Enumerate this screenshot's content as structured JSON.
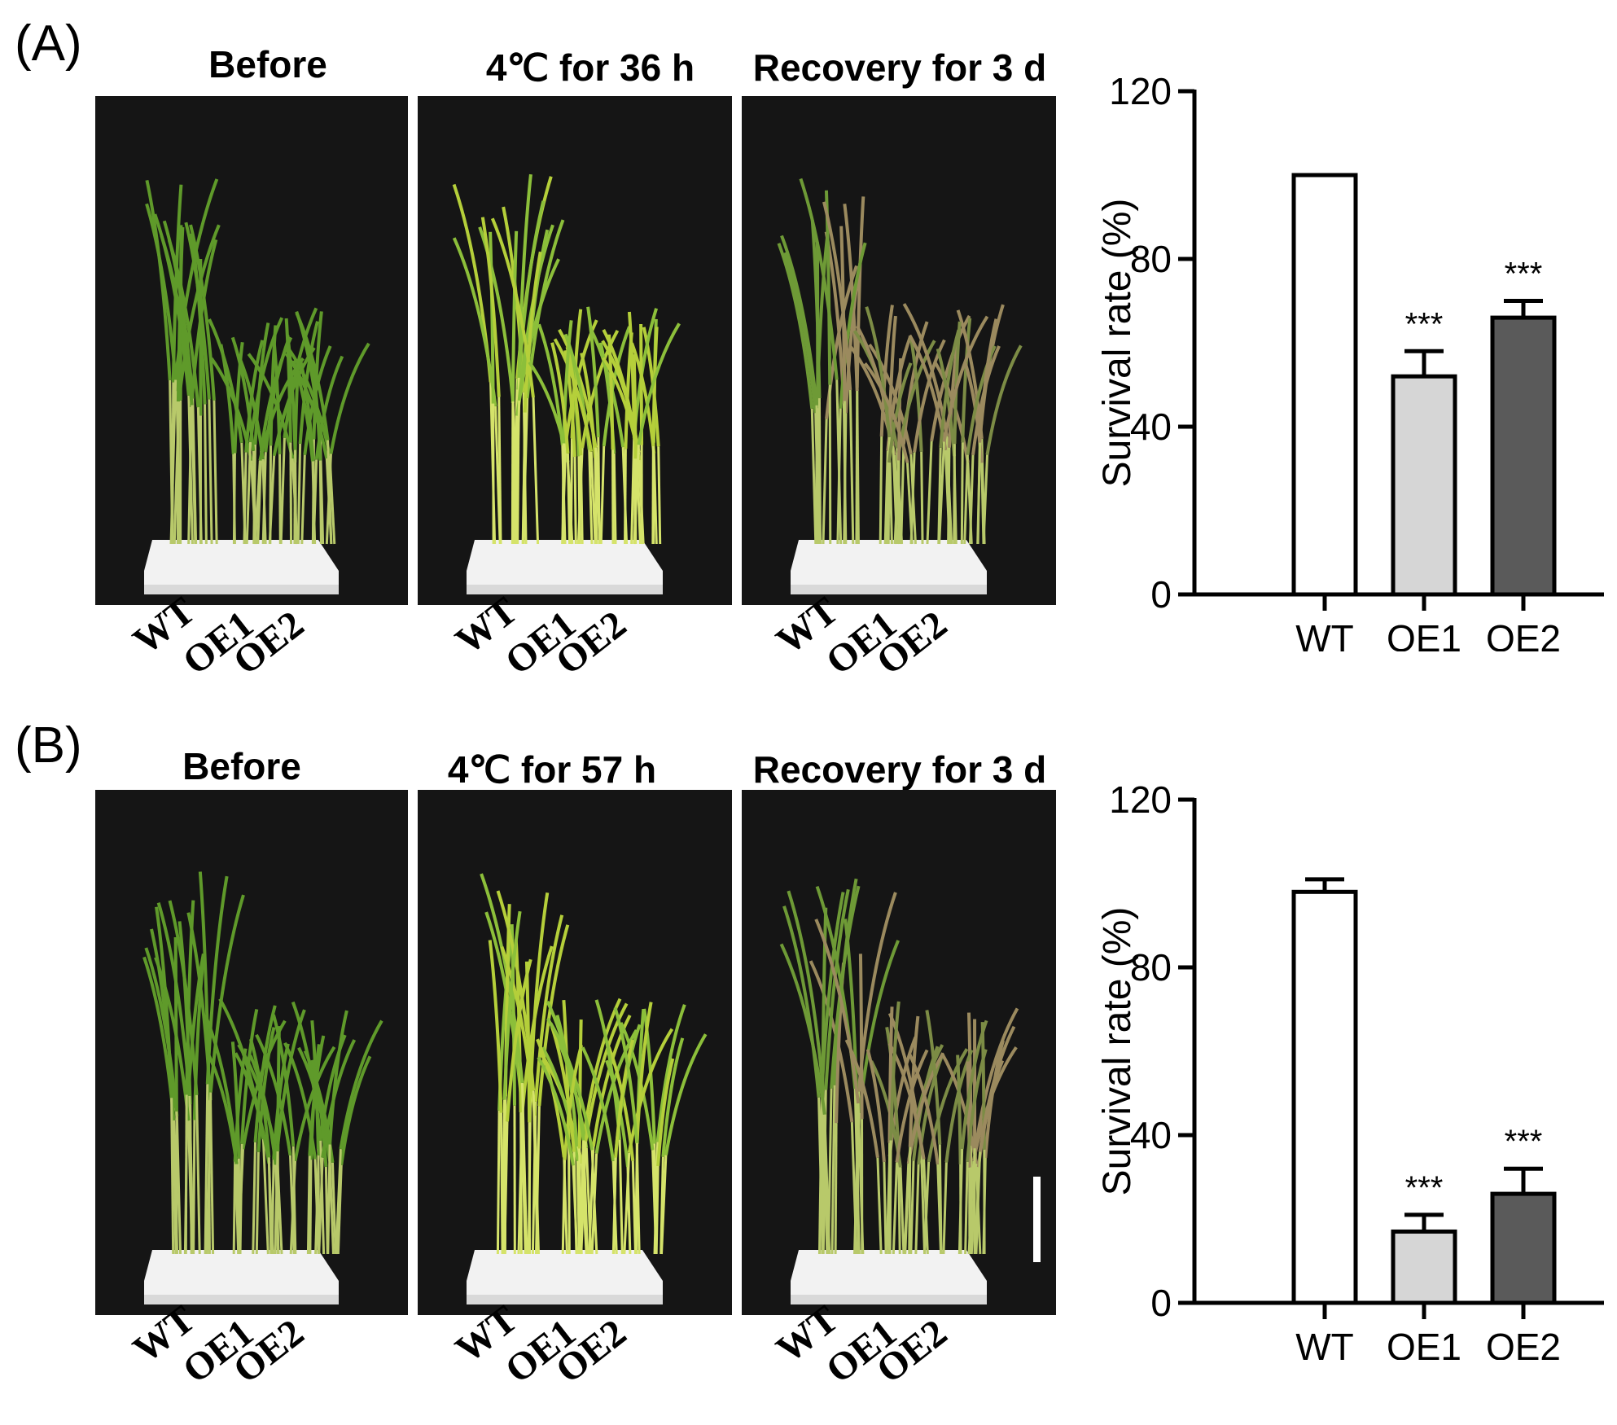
{
  "panels": [
    {
      "label": "(A)",
      "photos": [
        {
          "title": "Before",
          "condition": "before"
        },
        {
          "title": "4℃  for 36 h",
          "condition": "cold"
        },
        {
          "title": "Recovery for 3 d",
          "condition": "recovery"
        }
      ],
      "genotypes": [
        "WT",
        "OE1",
        "OE2"
      ],
      "scale_bar": false
    },
    {
      "label": "(B)",
      "photos": [
        {
          "title": "Before",
          "condition": "before"
        },
        {
          "title": "4℃  for 57 h",
          "condition": "cold"
        },
        {
          "title": "Recovery for 3 d",
          "condition": "recovery"
        }
      ],
      "genotypes": [
        "WT",
        "OE1",
        "OE2"
      ],
      "scale_bar": true
    }
  ],
  "colors": {
    "photo_background": "#151515",
    "leaf_green": "#5f9a2a",
    "leaf_yellow": "#b5cf3a",
    "leaf_brown": "#9b8a5e",
    "tray": "#f2f2f2",
    "bar_wt": "#ffffff",
    "bar_oe1": "#d6d6d6",
    "bar_oe2": "#5a5a5a"
  },
  "chart_data": [
    {
      "type": "bar",
      "panel": "A",
      "categories": [
        "WT",
        "OE1",
        "OE2"
      ],
      "values": [
        100,
        52,
        66
      ],
      "errors": [
        0,
        6,
        4
      ],
      "significance": [
        "",
        "***",
        "***"
      ],
      "ylabel": "Survival rate (%)",
      "xlabel": "",
      "ylim": [
        0,
        120
      ],
      "yticks": [
        "0",
        "40",
        "80",
        "120"
      ]
    },
    {
      "type": "bar",
      "panel": "B",
      "categories": [
        "WT",
        "OE1",
        "OE2"
      ],
      "values": [
        98,
        17,
        26
      ],
      "errors": [
        3,
        4,
        6
      ],
      "significance": [
        "",
        "***",
        "***"
      ],
      "ylabel": "Survival rate (%)",
      "xlabel": "",
      "ylim": [
        0,
        120
      ],
      "yticks": [
        "0",
        "40",
        "80",
        "120"
      ]
    }
  ]
}
